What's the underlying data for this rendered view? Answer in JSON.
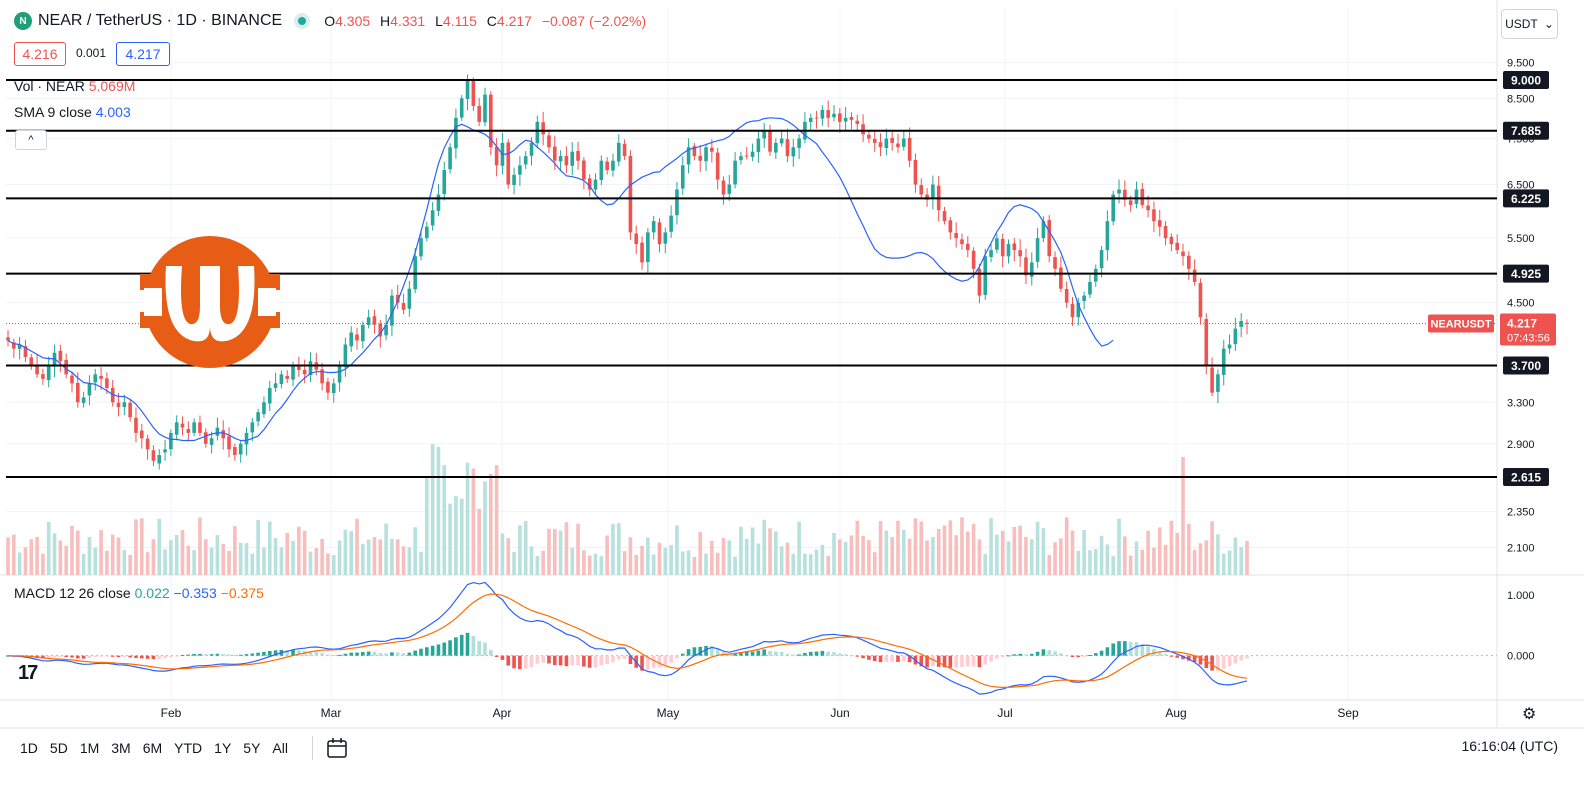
{
  "header": {
    "symbol_icon": "N",
    "title": "NEAR / TetherUS · 1D · BINANCE",
    "o_label": "O",
    "o": "4.305",
    "h_label": "H",
    "h": "4.331",
    "l_label": "L",
    "l": "4.115",
    "c_label": "C",
    "c": "4.217",
    "change": "−0.087 (−2.02%)",
    "sell": "4.216",
    "spread": "0.001",
    "buy": "4.217"
  },
  "indicators": {
    "vol_label": "Vol · NEAR",
    "vol_value": "5.069M",
    "sma_label": "SMA 9 close",
    "sma_value": "4.003",
    "macd_label": "MACD 12 26 close",
    "macd_hist": "0.022",
    "macd_line": "−0.353",
    "macd_signal": "−0.375",
    "collapse_icon": "^"
  },
  "currency_selector": {
    "value": "USDT",
    "icon": "chevron-down-icon"
  },
  "price_axis": [
    "9.500",
    "8.500",
    "7.500",
    "6.500",
    "5.500",
    "4.500",
    "3.300",
    "2.900",
    "2.350",
    "2.100"
  ],
  "macd_axis": [
    "1.000",
    "0.000"
  ],
  "time_axis": [
    "Feb",
    "Mar",
    "Apr",
    "May",
    "Jun",
    "Jul",
    "Aug",
    "Sep"
  ],
  "timeframes": [
    "1D",
    "5D",
    "1M",
    "3M",
    "6M",
    "YTD",
    "1Y",
    "5Y",
    "All"
  ],
  "clock": "16:16:04 (UTC)",
  "logo_text": "17",
  "last_price_tag": {
    "name": "NEARUSDT",
    "price": "4.217",
    "countdown": "07:43:56"
  },
  "colors": {
    "up": "#26a69a",
    "down": "#ef5350",
    "sma": "#2962ff",
    "macd": "#2962ff",
    "signal": "#ff6d00",
    "level": "#000000",
    "logo": "#e85d15"
  },
  "chart_data": {
    "type": "candlestick",
    "levels": [
      {
        "value": 9.0,
        "label": "9.000"
      },
      {
        "value": 7.685,
        "label": "7.685"
      },
      {
        "value": 6.225,
        "label": "6.225"
      },
      {
        "value": 4.925,
        "label": "4.925"
      },
      {
        "value": 3.7,
        "label": "3.700"
      },
      {
        "value": 2.615,
        "label": "2.615"
      }
    ],
    "ylim": [
      1.8,
      10.0
    ],
    "months": [
      "Feb",
      "Mar",
      "Apr",
      "May",
      "Jun",
      "Jul",
      "Aug",
      "Sep"
    ],
    "closes": [
      4.0,
      3.9,
      3.95,
      3.8,
      3.7,
      3.6,
      3.55,
      3.7,
      3.85,
      3.75,
      3.6,
      3.5,
      3.3,
      3.35,
      3.5,
      3.6,
      3.55,
      3.45,
      3.3,
      3.25,
      3.3,
      3.15,
      3.0,
      2.95,
      2.85,
      2.75,
      2.8,
      2.85,
      3.0,
      3.1,
      3.05,
      3.0,
      3.1,
      3.0,
      2.9,
      2.95,
      3.05,
      2.95,
      2.85,
      2.8,
      2.9,
      3.0,
      3.1,
      3.2,
      3.3,
      3.45,
      3.5,
      3.6,
      3.55,
      3.7,
      3.65,
      3.6,
      3.75,
      3.65,
      3.5,
      3.4,
      3.5,
      3.7,
      3.95,
      4.1,
      4.0,
      4.2,
      4.3,
      4.2,
      4.05,
      4.2,
      4.6,
      4.5,
      4.4,
      4.7,
      5.2,
      5.5,
      5.7,
      6.0,
      6.3,
      6.8,
      7.3,
      8.0,
      8.5,
      9.0,
      8.3,
      7.9,
      8.6,
      7.3,
      6.9,
      7.4,
      6.5,
      6.7,
      6.9,
      7.1,
      7.4,
      7.9,
      7.6,
      7.3,
      7.0,
      7.1,
      6.9,
      7.2,
      7.0,
      6.6,
      6.4,
      6.6,
      7.0,
      6.8,
      7.0,
      7.4,
      7.1,
      5.6,
      5.4,
      5.1,
      5.6,
      5.8,
      5.4,
      5.6,
      5.9,
      6.4,
      6.9,
      7.3,
      7.1,
      7.0,
      7.3,
      7.2,
      6.6,
      6.3,
      6.5,
      7.0,
      7.1,
      7.1,
      7.2,
      7.5,
      7.7,
      7.2,
      7.4,
      7.5,
      7.1,
      7.3,
      7.5,
      7.9,
      8.0,
      8.0,
      8.2,
      8.0,
      8.1,
      7.9,
      8.0,
      7.95,
      7.85,
      7.6,
      7.5,
      7.4,
      7.3,
      7.5,
      7.4,
      7.3,
      7.5,
      7.0,
      6.5,
      6.3,
      6.2,
      6.5,
      6.0,
      5.8,
      5.6,
      5.5,
      5.4,
      5.3,
      5.0,
      4.6,
      5.2,
      5.3,
      5.5,
      5.2,
      5.4,
      5.3,
      5.2,
      4.9,
      5.1,
      5.5,
      5.8,
      5.2,
      5.0,
      4.7,
      4.5,
      4.3,
      4.5,
      4.6,
      4.8,
      5.0,
      5.3,
      5.8,
      6.3,
      6.4,
      6.2,
      6.1,
      6.4,
      6.1,
      6.0,
      5.8,
      5.7,
      5.5,
      5.4,
      5.3,
      5.2,
      5.0,
      4.8,
      4.3,
      3.7,
      3.4,
      3.6,
      3.9,
      3.95,
      4.15,
      4.25,
      4.217
    ],
    "sma": [
      4.0,
      3.96,
      3.95,
      3.91,
      3.87,
      3.83,
      3.79,
      3.78,
      3.78,
      3.72,
      3.66,
      3.62,
      3.56,
      3.51,
      3.5,
      3.49,
      3.46,
      3.42,
      3.38,
      3.36,
      3.36,
      3.33,
      3.28,
      3.21,
      3.13,
      3.05,
      2.99,
      2.96,
      2.94,
      2.94,
      2.93,
      2.93,
      2.93,
      2.95,
      2.97,
      2.99,
      3.0,
      3.0,
      2.98,
      2.95,
      2.93,
      2.93,
      2.95,
      2.97,
      3.03,
      3.11,
      3.19,
      3.25,
      3.33,
      3.42,
      3.5,
      3.56,
      3.61,
      3.63,
      3.63,
      3.62,
      3.62,
      3.63,
      3.66,
      3.71,
      3.78,
      3.85,
      3.93,
      4.02,
      4.09,
      4.2,
      4.35,
      4.52,
      4.74,
      4.98,
      5.26,
      5.62,
      6.01,
      6.47,
      6.94,
      7.29,
      7.55,
      7.78,
      7.84,
      7.78,
      7.7,
      7.66,
      7.6,
      7.49,
      7.32,
      7.14,
      7.15,
      7.23,
      7.36,
      7.46,
      7.43,
      7.3,
      7.19,
      7.07,
      6.94,
      6.79,
      6.68,
      6.66,
      6.63,
      6.58,
      6.47,
      6.3,
      6.18,
      6.1,
      6.12,
      6.23,
      6.37,
      6.49,
      6.57,
      6.65,
      6.7,
      6.75,
      6.76,
      6.87,
      6.96,
      7.05,
      7.16,
      7.25,
      7.28,
      7.32,
      7.36,
      7.41,
      7.45,
      7.48,
      7.55,
      7.68,
      7.78,
      7.88,
      7.92,
      7.93,
      7.98,
      8.0,
      7.99,
      7.98,
      7.92,
      7.82,
      7.7,
      7.58,
      7.48,
      7.38,
      7.19,
      7.02,
      6.84,
      6.65,
      6.42,
      6.17,
      5.93,
      5.72,
      5.5,
      5.32,
      5.23,
      5.18,
      5.17,
      5.17,
      5.18,
      5.21,
      5.25,
      5.26,
      5.23,
      5.16,
      5.05,
      4.96,
      4.89,
      4.84,
      4.81,
      4.83,
      4.9,
      5.03,
      5.23,
      5.42,
      5.61,
      5.77,
      5.96,
      6.07,
      6.1,
      6.07,
      6.03,
      5.95,
      5.79,
      5.62,
      5.45,
      5.26,
      5.01,
      4.72,
      4.47,
      4.3,
      4.15,
      4.02,
      3.93,
      3.95,
      4.003
    ],
    "volume_scale_max": 100,
    "macd_line": "MACD 12 26 close",
    "macd_ylim": [
      -0.6,
      1.25
    ]
  }
}
